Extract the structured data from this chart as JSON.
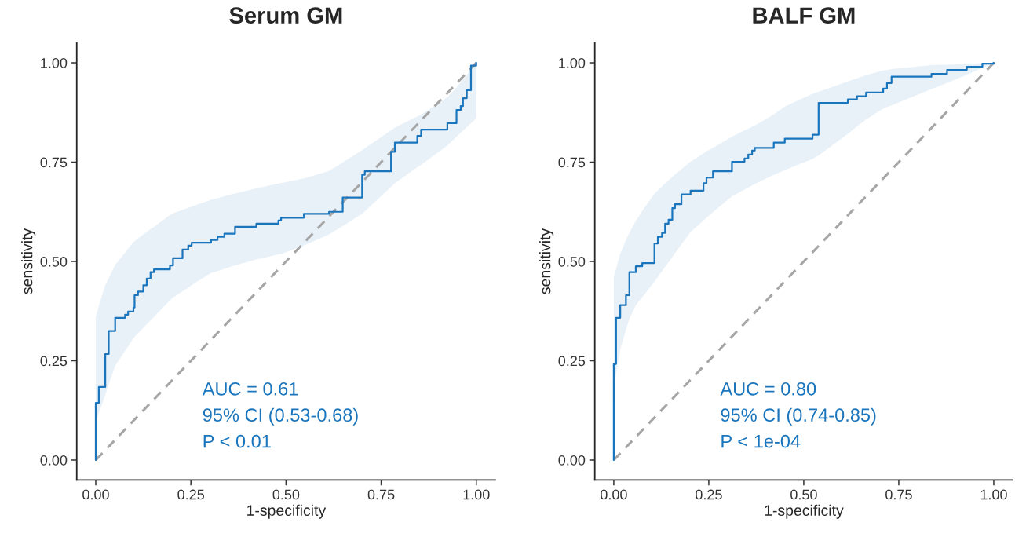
{
  "chart_data": [
    {
      "type": "step",
      "title": "Serum GM",
      "xlabel": "1-specificity",
      "ylabel": "sensitivity",
      "xlim": [
        -0.05,
        1.05
      ],
      "ylim": [
        -0.05,
        1.05
      ],
      "xticks": [
        {
          "value": 0,
          "label": "0.00"
        },
        {
          "value": 0.25,
          "label": "0.25"
        },
        {
          "value": 0.5,
          "label": "0.50"
        },
        {
          "value": 0.75,
          "label": "0.75"
        },
        {
          "value": 1,
          "label": "1.00"
        }
      ],
      "yticks": [
        {
          "value": 0,
          "label": "0.00"
        },
        {
          "value": 0.25,
          "label": "0.25"
        },
        {
          "value": 0.5,
          "label": "0.50"
        },
        {
          "value": 0.75,
          "label": "0.75"
        },
        {
          "value": 1,
          "label": "1.00"
        }
      ],
      "grid": false,
      "legend": false,
      "annotations": [
        "AUC = 0.61",
        "95% CI (0.53-0.68)",
        "P < 0.01"
      ],
      "series": [
        {
          "type": "line",
          "color": "#a6a6a6",
          "line_style": "dashed",
          "x": [
            0,
            1
          ],
          "values": [
            0,
            1
          ]
        },
        {
          "type": "step",
          "color": "#1a75bc",
          "line_style": "solid",
          "x": [
            0,
            0,
            0.008,
            0.025,
            0.034,
            0.051,
            0.077,
            0.085,
            0.099,
            0.102,
            0.111,
            0.125,
            0.134,
            0.144,
            0.153,
            0.195,
            0.203,
            0.228,
            0.243,
            0.252,
            0.303,
            0.32,
            0.338,
            0.366,
            0.422,
            0.48,
            0.487,
            0.547,
            0.613,
            0.649,
            0.7,
            0.707,
            0.776,
            0.786,
            0.845,
            0.855,
            0.924,
            0.948,
            0.959,
            0.965,
            0.975,
            0.986,
            1
          ],
          "values": [
            0,
            0.144,
            0.184,
            0.267,
            0.325,
            0.358,
            0.366,
            0.374,
            0.384,
            0.415,
            0.424,
            0.44,
            0.457,
            0.473,
            0.48,
            0.49,
            0.508,
            0.53,
            0.54,
            0.547,
            0.554,
            0.562,
            0.57,
            0.587,
            0.595,
            0.603,
            0.61,
            0.62,
            0.625,
            0.661,
            0.718,
            0.727,
            0.776,
            0.799,
            0.816,
            0.832,
            0.848,
            0.881,
            0.891,
            0.911,
            0.931,
            0.993,
            1
          ],
          "lower": [
            0.097,
            0.097,
            0.118,
            0.164,
            0.19,
            0.237,
            0.275,
            0.286,
            0.307,
            0.31,
            0.319,
            0.333,
            0.342,
            0.352,
            0.36,
            0.402,
            0.409,
            0.425,
            0.434,
            0.44,
            0.471,
            0.476,
            0.481,
            0.49,
            0.505,
            0.518,
            0.519,
            0.54,
            0.568,
            0.589,
            0.62,
            0.626,
            0.688,
            0.697,
            0.737,
            0.743,
            0.792,
            0.814,
            0.824,
            0.829,
            0.838,
            0.848,
            0.86
          ],
          "upper": [
            0.36,
            0.36,
            0.388,
            0.44,
            0.458,
            0.491,
            0.522,
            0.532,
            0.549,
            0.551,
            0.558,
            0.568,
            0.574,
            0.581,
            0.587,
            0.617,
            0.621,
            0.63,
            0.635,
            0.638,
            0.655,
            0.659,
            0.664,
            0.671,
            0.684,
            0.696,
            0.697,
            0.709,
            0.728,
            0.749,
            0.78,
            0.785,
            0.83,
            0.837,
            0.865,
            0.869,
            0.913,
            0.938,
            0.951,
            0.958,
            0.97,
            0.983,
            1
          ]
        }
      ]
    },
    {
      "type": "step",
      "title": "BALF GM",
      "xlabel": "1-specificity",
      "ylabel": "sensitivity",
      "xlim": [
        -0.05,
        1.05
      ],
      "ylim": [
        -0.05,
        1.05
      ],
      "xticks": [
        {
          "value": 0,
          "label": "0.00"
        },
        {
          "value": 0.25,
          "label": "0.25"
        },
        {
          "value": 0.5,
          "label": "0.50"
        },
        {
          "value": 0.75,
          "label": "0.75"
        },
        {
          "value": 1,
          "label": "1.00"
        }
      ],
      "yticks": [
        {
          "value": 0,
          "label": "0.00"
        },
        {
          "value": 0.25,
          "label": "0.25"
        },
        {
          "value": 0.5,
          "label": "0.50"
        },
        {
          "value": 0.75,
          "label": "0.75"
        },
        {
          "value": 1,
          "label": "1.00"
        }
      ],
      "grid": false,
      "legend": false,
      "annotations": [
        "AUC = 0.80",
        "95% CI (0.74-0.85)",
        "P < 1e-04"
      ],
      "series": [
        {
          "type": "line",
          "color": "#a6a6a6",
          "line_style": "dashed",
          "x": [
            0,
            1
          ],
          "values": [
            0,
            1
          ]
        },
        {
          "type": "step",
          "color": "#1a75bc",
          "line_style": "solid",
          "x": [
            0,
            0,
            0.006,
            0.017,
            0.032,
            0.041,
            0.058,
            0.075,
            0.107,
            0.116,
            0.127,
            0.135,
            0.144,
            0.154,
            0.161,
            0.178,
            0.202,
            0.236,
            0.244,
            0.261,
            0.311,
            0.344,
            0.354,
            0.364,
            0.371,
            0.421,
            0.45,
            0.523,
            0.539,
            0.616,
            0.64,
            0.664,
            0.709,
            0.719,
            0.731,
            0.836,
            0.877,
            0.929,
            0.97,
            1
          ],
          "values": [
            0,
            0.242,
            0.358,
            0.39,
            0.415,
            0.473,
            0.488,
            0.496,
            0.545,
            0.562,
            0.572,
            0.595,
            0.605,
            0.634,
            0.644,
            0.669,
            0.678,
            0.697,
            0.711,
            0.727,
            0.751,
            0.759,
            0.769,
            0.779,
            0.786,
            0.799,
            0.809,
            0.819,
            0.899,
            0.908,
            0.916,
            0.925,
            0.935,
            0.949,
            0.965,
            0.972,
            0.982,
            0.99,
            0.998,
            1
          ],
          "lower": [
            0.183,
            0.183,
            0.217,
            0.278,
            0.329,
            0.355,
            0.39,
            0.41,
            0.449,
            0.461,
            0.476,
            0.486,
            0.498,
            0.511,
            0.521,
            0.543,
            0.574,
            0.603,
            0.61,
            0.624,
            0.664,
            0.681,
            0.686,
            0.691,
            0.695,
            0.718,
            0.73,
            0.758,
            0.767,
            0.821,
            0.84,
            0.857,
            0.885,
            0.889,
            0.893,
            0.934,
            0.949,
            0.97,
            0.987,
            1
          ],
          "upper": [
            0.46,
            0.46,
            0.481,
            0.52,
            0.554,
            0.572,
            0.602,
            0.627,
            0.671,
            0.679,
            0.689,
            0.696,
            0.704,
            0.713,
            0.719,
            0.732,
            0.751,
            0.772,
            0.777,
            0.786,
            0.814,
            0.83,
            0.834,
            0.839,
            0.842,
            0.87,
            0.89,
            0.922,
            0.927,
            0.953,
            0.961,
            0.969,
            0.981,
            0.982,
            0.984,
            0.994,
            0.995,
            0.997,
            0.999,
            1
          ]
        }
      ]
    }
  ]
}
